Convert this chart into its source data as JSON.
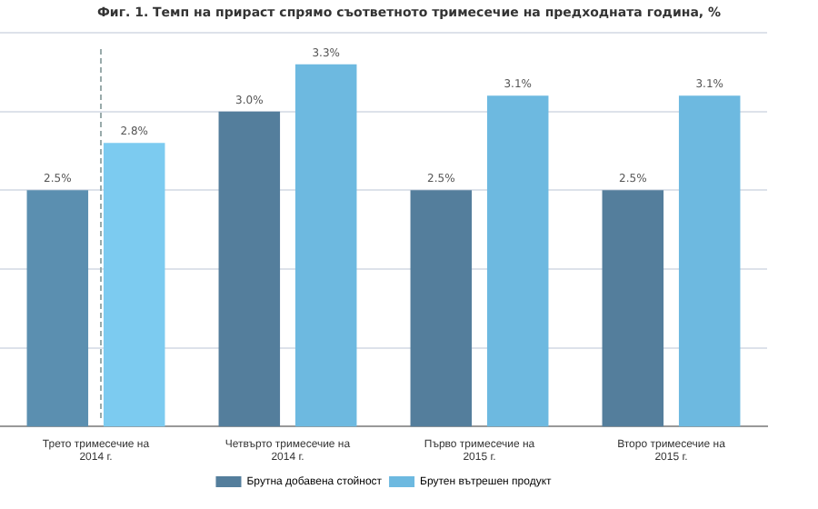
{
  "chart_data": {
    "type": "bar",
    "title": "Фиг. 1. Темп на прираст спрямо съответното тримесечие на предходната година, %",
    "categories": [
      [
        "Трето тримесечие на",
        "2014 г."
      ],
      [
        "Четвърто тримесечие на",
        "2014 г."
      ],
      [
        "Първо тримесечие на",
        "2015 г."
      ],
      [
        "Второ тримесечие на",
        "2015 г."
      ]
    ],
    "series": [
      {
        "name": "Брутна добавена стойност",
        "color": "#547e9c",
        "colors": [
          "#5b8fb0",
          "#547e9c",
          "#547e9c",
          "#547e9c"
        ],
        "values": [
          2.5,
          3.0,
          2.5,
          2.5
        ],
        "value_labels": [
          "2.5%",
          "3.0%",
          "2.5%",
          "2.5%"
        ]
      },
      {
        "name": "Брутен вътрешен продукт",
        "color": "#6db9e0",
        "colors": [
          "#7ccbf0",
          "#6db9e0",
          "#6db9e0",
          "#6db9e0"
        ],
        "values": [
          2.8,
          3.3,
          3.1,
          3.1
        ],
        "value_labels": [
          "2.8%",
          "3.3%",
          "3.1%",
          "3.1%"
        ]
      }
    ],
    "ylim": [
      1,
      3.5
    ],
    "yticks": [
      {
        "value": 1,
        "label": null
      },
      {
        "value": 1.5,
        "label": null
      },
      {
        "value": 2,
        "label": null
      },
      {
        "value": 2.5,
        "label": null
      },
      {
        "value": 3,
        "label": null
      },
      {
        "value": 3.5,
        "label": null
      }
    ],
    "tick_labels": "x",
    "grid": "y",
    "legend": "bottom"
  }
}
